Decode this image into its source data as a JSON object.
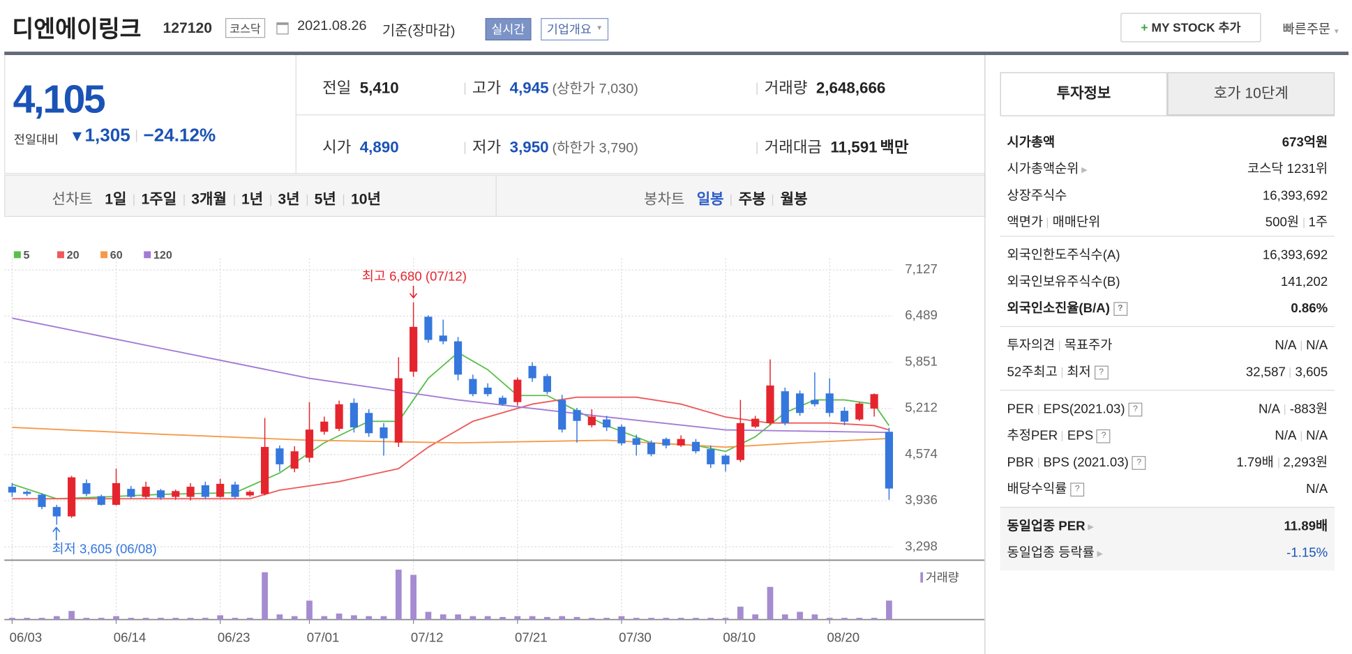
{
  "header": {
    "name": "디엔에이링크",
    "code": "127120",
    "market": "코스닥",
    "date": "2021.08.26",
    "basis": "기준(장마감)",
    "realtime": "실시간",
    "company": "기업개요",
    "mystock": "MY STOCK 추가",
    "quick": "빠른주문"
  },
  "price": {
    "current": "4,105",
    "change_label": "전일대비",
    "change": "1,305",
    "change_pct": "−24.12%"
  },
  "stats": [
    {
      "label": "전일",
      "value": "5,410"
    },
    {
      "label": "고가",
      "value": "4,945",
      "extra": "(상한가 7,030)"
    },
    {
      "label": "거래량",
      "value": "2,648,666"
    },
    {
      "label": "시가",
      "value": "4,890"
    },
    {
      "label": "저가",
      "value": "3,950",
      "extra": "(하한가 3,790)"
    },
    {
      "label": "거래대금",
      "value": "11,591",
      "unit": "백만"
    }
  ],
  "periods": {
    "line_label": "선차트",
    "line": [
      "1일",
      "1주일",
      "3개월",
      "1년",
      "3년",
      "5년",
      "10년"
    ],
    "candle_label": "봉차트",
    "candle": [
      "일봉",
      "주봉",
      "월봉"
    ]
  },
  "chart_data": {
    "type": "candlestick",
    "categories": [
      "06/03",
      null,
      null,
      null,
      null,
      null,
      null,
      "06/14",
      null,
      null,
      null,
      null,
      null,
      null,
      "06/23",
      null,
      null,
      null,
      null,
      null,
      "07/01",
      null,
      null,
      null,
      null,
      null,
      null,
      "07/12",
      null,
      null,
      null,
      null,
      null,
      null,
      "07/21",
      null,
      null,
      null,
      null,
      null,
      null,
      "07/30",
      null,
      null,
      null,
      null,
      null,
      null,
      "08/10",
      null,
      null,
      null,
      null,
      null,
      null,
      "08/20",
      null,
      null,
      null,
      null
    ],
    "open": [
      4130,
      4060,
      4020,
      3850,
      3720,
      4180,
      4000,
      3880,
      4100,
      3990,
      4080,
      3990,
      3990,
      4150,
      3990,
      4160,
      4010,
      4030,
      4660,
      4380,
      4530,
      4890,
      4930,
      5290,
      5150,
      4950,
      4740,
      5720,
      6480,
      6220,
      6140,
      5620,
      5500,
      5360,
      5300,
      5800,
      5660,
      5330,
      5190,
      4980,
      5060,
      4960,
      4800,
      4740,
      4790,
      4700,
      4750,
      4650,
      4560,
      4500,
      4960,
      5010,
      5450,
      5420,
      5330,
      5420,
      5180,
      5060,
      5210,
      4890
    ],
    "high": [
      4180,
      4080,
      4040,
      3880,
      4280,
      4230,
      4020,
      4380,
      4140,
      4200,
      4100,
      4090,
      4180,
      4200,
      4240,
      4200,
      4080,
      5080,
      4700,
      4690,
      5300,
      5100,
      5320,
      5350,
      5200,
      5010,
      5920,
      6680,
      6500,
      6440,
      6200,
      5680,
      5560,
      5390,
      5640,
      5850,
      5690,
      5400,
      5220,
      5200,
      5110,
      4990,
      4850,
      4770,
      4810,
      4840,
      4790,
      4700,
      4580,
      5330,
      5110,
      5890,
      5500,
      5460,
      5710,
      5630,
      5230,
      5300,
      5420,
      4945
    ],
    "low": [
      3990,
      4000,
      3820,
      3605,
      3700,
      4000,
      3870,
      3870,
      3970,
      3960,
      3950,
      3950,
      3940,
      3960,
      3980,
      3970,
      3990,
      4010,
      4340,
      4330,
      4470,
      4850,
      4900,
      4880,
      4820,
      4560,
      4680,
      5650,
      6120,
      6100,
      5600,
      5380,
      5380,
      5250,
      5250,
      5580,
      5410,
      4880,
      4740,
      4950,
      4900,
      4700,
      4560,
      4550,
      4660,
      4680,
      4590,
      4390,
      4340,
      4470,
      4940,
      4980,
      4980,
      5110,
      5240,
      5100,
      4980,
      5040,
      5100,
      3950
    ],
    "close": [
      4050,
      4030,
      3850,
      3720,
      4260,
      4030,
      3880,
      4180,
      3990,
      4130,
      3980,
      4070,
      4130,
      3990,
      4170,
      3990,
      4060,
      4680,
      4440,
      4620,
      4920,
      5030,
      5270,
      4950,
      4870,
      4800,
      5630,
      6340,
      6160,
      6140,
      5680,
      5410,
      5410,
      5270,
      5610,
      5630,
      5440,
      4920,
      5040,
      5100,
      4950,
      4730,
      4710,
      4580,
      4700,
      4790,
      4620,
      4440,
      4440,
      5010,
      5070,
      5530,
      5010,
      5150,
      5270,
      5150,
      5030,
      5280,
      5410,
      4105
    ],
    "up_color": "#e5252e",
    "down_color": "#3577dd",
    "ylim": [
      3150,
      7290
    ],
    "yticks": [
      {
        "value": 7127,
        "label": "7,127"
      },
      {
        "value": 6489,
        "label": "6,489"
      },
      {
        "value": 5851,
        "label": "5,851"
      },
      {
        "value": 5212,
        "label": "5,212"
      },
      {
        "value": 4574,
        "label": "4,574"
      },
      {
        "value": 3936,
        "label": "3,936"
      },
      {
        "value": 3298,
        "label": "3,298"
      }
    ],
    "grid": true,
    "moving_averages": [
      {
        "name": "5",
        "color": "#5cbf4c",
        "x": [
          0,
          3,
          6,
          10,
          15,
          18,
          21,
          24,
          26,
          28,
          30,
          32,
          34,
          36,
          38,
          40,
          43,
          46,
          48,
          50,
          52,
          54,
          56,
          58,
          59
        ],
        "values": [
          4166,
          3964,
          3988,
          4024,
          4048,
          4321,
          4737,
          5034,
          5034,
          5629,
          5985,
          5748,
          5391,
          5391,
          5177,
          4975,
          4737,
          4701,
          4618,
          4820,
          5153,
          5331,
          5331,
          5272,
          4975
        ]
      },
      {
        "name": "20",
        "color": "#ee5a5a",
        "x": [
          0,
          16,
          18,
          22,
          26,
          28,
          31,
          35,
          38,
          42,
          45,
          48,
          51,
          55,
          58,
          59
        ],
        "values": [
          3964,
          3964,
          4083,
          4202,
          4380,
          4678,
          5034,
          5272,
          5367,
          5367,
          5272,
          5094,
          5011,
          5011,
          4975,
          4916
        ]
      },
      {
        "name": "60",
        "color": "#f59a4a",
        "x": [
          0,
          10,
          20,
          30,
          40,
          48,
          53,
          59
        ],
        "values": [
          4951,
          4856,
          4773,
          4737,
          4773,
          4678,
          4737,
          4796
        ]
      },
      {
        "name": "120",
        "color": "#a27ad6",
        "x": [
          0,
          10,
          20,
          30,
          40,
          48,
          59
        ],
        "values": [
          6461,
          6045,
          5629,
          5331,
          5094,
          4916,
          4880
        ]
      }
    ],
    "volume": [
      240000,
      240000,
      240000,
      480000,
      1200000,
      240000,
      240000,
      480000,
      240000,
      240000,
      240000,
      240000,
      240000,
      240000,
      600000,
      240000,
      240000,
      6600000,
      720000,
      480000,
      2640000,
      480000,
      840000,
      600000,
      480000,
      480000,
      6960000,
      6240000,
      1080000,
      720000,
      720000,
      480000,
      480000,
      360000,
      480000,
      480000,
      360000,
      480000,
      360000,
      240000,
      240000,
      480000,
      240000,
      240000,
      240000,
      240000,
      240000,
      240000,
      240000,
      1800000,
      720000,
      4560000,
      720000,
      1080000,
      720000,
      240000,
      240000,
      240000,
      240000,
      2648666
    ],
    "volume_color": "#a58bd0",
    "volume_ylim": [
      0,
      7800000
    ],
    "volume_label": "거래량",
    "high_note": "최고 6,680 (07/12)",
    "low_note": "최저 3,605 (06/08)"
  },
  "side": {
    "tabs": [
      "투자정보",
      "호가 10단계"
    ],
    "groups": [
      [
        {
          "label": [
            "시가총액"
          ],
          "value": [
            "673억원"
          ]
        },
        {
          "label": [
            "시가총액순위"
          ],
          "value": [
            "코스닥 1231위"
          ]
        },
        {
          "label": [
            "상장주식수"
          ],
          "value": [
            "16,393,692"
          ]
        },
        {
          "label": [
            "액면가",
            "매매단위"
          ],
          "value": [
            "500원",
            "1주"
          ]
        }
      ],
      [
        {
          "label": [
            "외국인한도주식수(A)"
          ],
          "value": [
            "16,393,692"
          ]
        },
        {
          "label": [
            "외국인보유주식수(B)"
          ],
          "value": [
            "141,202"
          ]
        },
        {
          "label": [
            "외국인소진율(B/A)"
          ],
          "value": [
            "0.86%"
          ]
        }
      ],
      [
        {
          "label": [
            "투자의견",
            "목표주가"
          ],
          "value": [
            "N/A",
            "N/A"
          ]
        },
        {
          "label": [
            "52주최고",
            "최저"
          ],
          "value": [
            "32,587",
            "3,605"
          ]
        }
      ],
      [
        {
          "label": [
            "PER",
            "EPS(2021.03)"
          ],
          "value": [
            "N/A",
            "-883원"
          ]
        },
        {
          "label": [
            "추정PER",
            "EPS"
          ],
          "value": [
            "N/A",
            "N/A"
          ]
        },
        {
          "label": [
            "PBR",
            "BPS (2021.03)"
          ],
          "value": [
            "1.79배",
            "2,293원"
          ]
        },
        {
          "label": [
            "배당수익률"
          ],
          "value": [
            "N/A"
          ]
        }
      ],
      [
        {
          "label": [
            "동일업종 PER"
          ],
          "value": [
            "11.89배"
          ]
        },
        {
          "label": [
            "동일업종 등락률"
          ],
          "value": [
            "-1.15%"
          ]
        }
      ]
    ]
  }
}
